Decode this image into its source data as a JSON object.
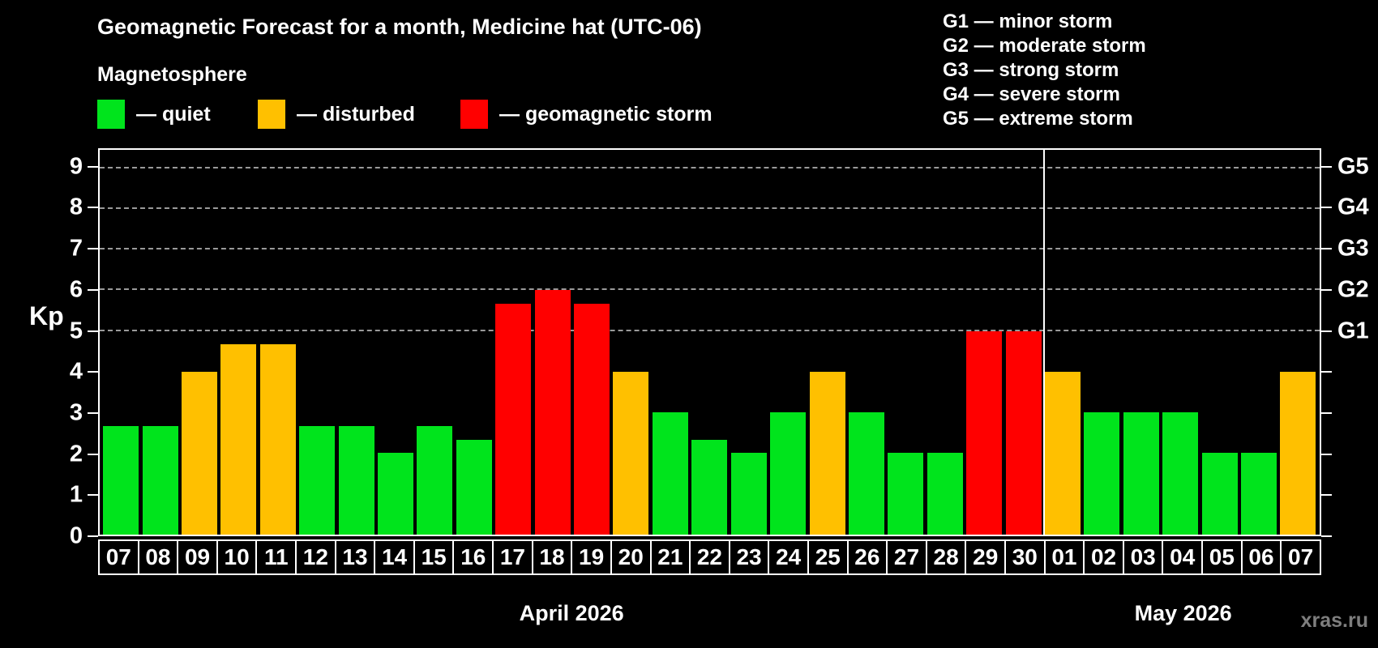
{
  "title": "Geomagnetic Forecast for a month, Medicine hat (UTC-06)",
  "subtitle": "Magnetosphere",
  "legend": {
    "items": [
      {
        "key": "quiet",
        "label": "— quiet"
      },
      {
        "key": "disturbed",
        "label": "— disturbed"
      },
      {
        "key": "storm",
        "label": "— geomagnetic storm"
      }
    ]
  },
  "g_legend": [
    "G1 — minor storm",
    "G2 — moderate storm",
    "G3 — strong storm",
    "G4 — severe storm",
    "G5 — extreme storm"
  ],
  "watermark": "xras.ru",
  "chart_data": {
    "type": "bar",
    "title": "Geomagnetic Forecast for a month, Medicine hat (UTC-06)",
    "ylabel": "Kp",
    "ylim": [
      0,
      9.45
    ],
    "y_ticks": [
      0,
      1,
      2,
      3,
      4,
      5,
      6,
      7,
      8,
      9
    ],
    "gridlines": [
      5,
      6,
      7,
      8,
      9
    ],
    "grid": true,
    "right_axis_labels": [
      {
        "value": 5,
        "label": "G1"
      },
      {
        "value": 6,
        "label": "G2"
      },
      {
        "value": 7,
        "label": "G3"
      },
      {
        "value": 8,
        "label": "G4"
      },
      {
        "value": 9,
        "label": "G5"
      }
    ],
    "colors": {
      "quiet": "#00e41c",
      "disturbed": "#ffc000",
      "storm": "#ff0000"
    },
    "months": [
      {
        "label": "April 2026",
        "days": 24
      },
      {
        "label": "May 2026",
        "days": 7
      }
    ],
    "categories": [
      "07",
      "08",
      "09",
      "10",
      "11",
      "12",
      "13",
      "14",
      "15",
      "16",
      "17",
      "18",
      "19",
      "20",
      "21",
      "22",
      "23",
      "24",
      "25",
      "26",
      "27",
      "28",
      "29",
      "30",
      "01",
      "02",
      "03",
      "04",
      "05",
      "06",
      "07"
    ],
    "values": [
      2.67,
      2.67,
      4.0,
      4.67,
      4.67,
      2.67,
      2.67,
      2.0,
      2.67,
      2.33,
      5.67,
      6.0,
      5.67,
      4.0,
      3.0,
      2.33,
      2.0,
      3.0,
      4.0,
      3.0,
      2.0,
      2.0,
      5.0,
      5.0,
      4.0,
      3.0,
      3.0,
      3.0,
      2.0,
      2.0,
      4.0
    ],
    "statuses": [
      "quiet",
      "quiet",
      "disturbed",
      "disturbed",
      "disturbed",
      "quiet",
      "quiet",
      "quiet",
      "quiet",
      "quiet",
      "storm",
      "storm",
      "storm",
      "disturbed",
      "quiet",
      "quiet",
      "quiet",
      "quiet",
      "disturbed",
      "quiet",
      "quiet",
      "quiet",
      "storm",
      "storm",
      "disturbed",
      "quiet",
      "quiet",
      "quiet",
      "quiet",
      "quiet",
      "disturbed"
    ]
  }
}
